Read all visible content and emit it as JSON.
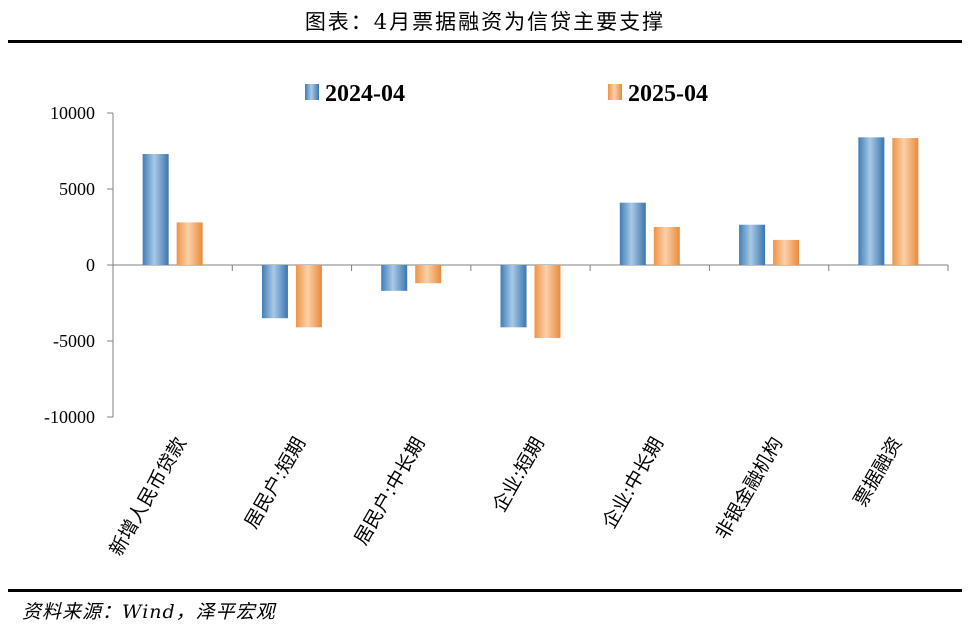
{
  "title": "图表：4月票据融资为信贷主要支撑",
  "source": "资料来源：Wind，泽平宏观",
  "colors": {
    "series_a": "#4f8dc2",
    "series_b": "#f2a15c",
    "axis": "#808080"
  },
  "chart_data": {
    "type": "bar",
    "categories": [
      "新增人民币贷款",
      "居民户:短期",
      "居民户:中长期",
      "企业:短期",
      "企业:中长期",
      "非银金融机构",
      "票据融资"
    ],
    "series": [
      {
        "name": "2024-04",
        "values": [
          7300,
          -3500,
          -1700,
          -4100,
          4100,
          2650,
          8400
        ]
      },
      {
        "name": "2025-04",
        "values": [
          2800,
          -4100,
          -1200,
          -4800,
          2500,
          1650,
          8350
        ]
      }
    ],
    "yticks": [
      10000,
      5000,
      0,
      -5000,
      -10000
    ],
    "ylim": [
      -10000,
      10000
    ],
    "legend_position": "top",
    "grid": false
  }
}
